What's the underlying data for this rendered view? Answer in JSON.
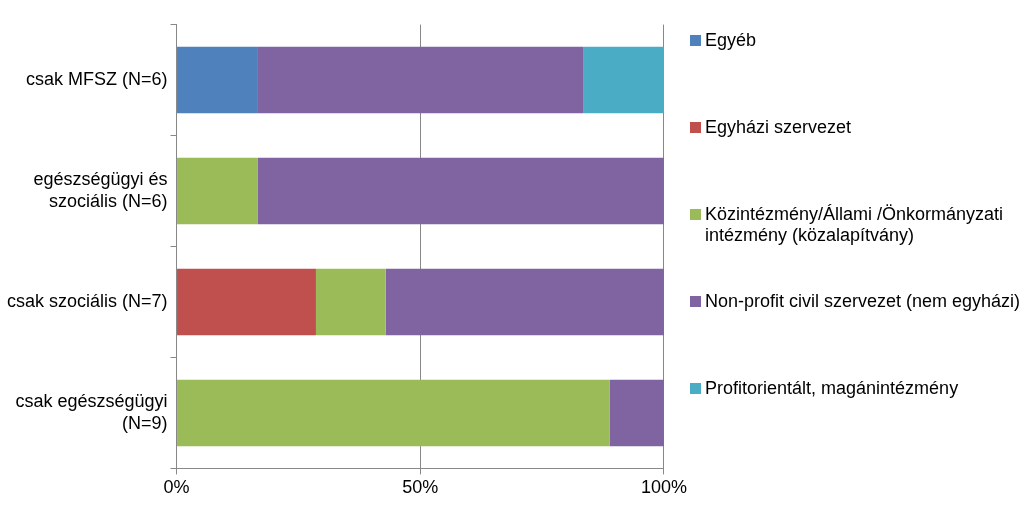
{
  "chart_data": {
    "type": "bar",
    "orientation": "horizontal",
    "stacked": true,
    "categories": [
      "csak MFSZ (N=6)",
      "egészségügyi és szociális (N=6)",
      "csak szociális (N=7)",
      "csak egészségügyi (N=9)"
    ],
    "series": [
      {
        "name": "Egyéb",
        "color": "#4f81bd",
        "values": [
          16.7,
          0,
          0,
          0
        ]
      },
      {
        "name": "Egyházi szervezet",
        "color": "#c0504d",
        "values": [
          0,
          0,
          28.6,
          0
        ]
      },
      {
        "name": "Közintézmény/Állami /Önkormányzati intézmény (közalapítvány)",
        "color": "#9bbb59",
        "values": [
          0,
          16.7,
          14.3,
          88.9
        ]
      },
      {
        "name": "Non-profit civil szervezet (nem egyházi)",
        "color": "#8064a2",
        "values": [
          66.7,
          83.3,
          57.1,
          11.1
        ]
      },
      {
        "name": "Profitorientált, magánintézmény",
        "color": "#4bacc6",
        "values": [
          16.7,
          0,
          0,
          0
        ]
      }
    ],
    "xlim": [
      0,
      100
    ],
    "xticks": [
      {
        "value": 0,
        "label": "0%"
      },
      {
        "value": 50,
        "label": "50%"
      },
      {
        "value": 100,
        "label": "100%"
      }
    ],
    "grid": "x",
    "legend": "right"
  }
}
